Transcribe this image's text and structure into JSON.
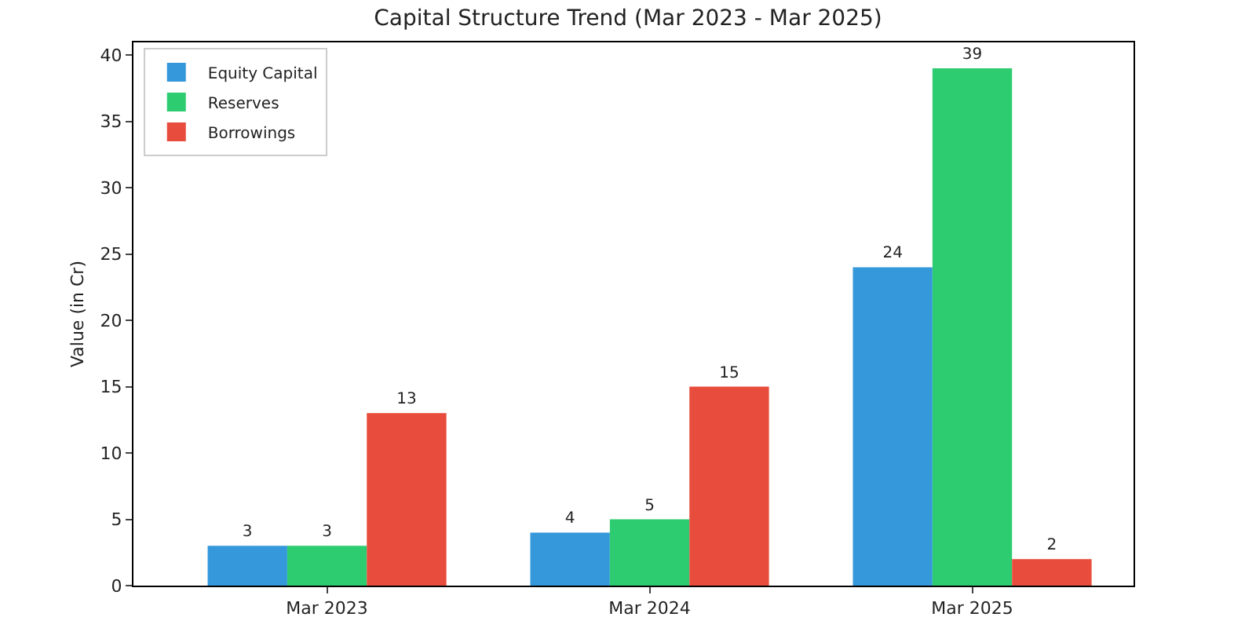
{
  "chart_data": {
    "type": "bar",
    "title": "Capital Structure Trend (Mar 2023 - Mar 2025)",
    "ylabel": "Value (in Cr)",
    "categories": [
      "Mar 2023",
      "Mar 2024",
      "Mar 2025"
    ],
    "series": [
      {
        "name": "Equity Capital",
        "color": "#3498db",
        "values": [
          3,
          4,
          24
        ]
      },
      {
        "name": "Reserves",
        "color": "#2ecc71",
        "values": [
          3,
          5,
          39
        ]
      },
      {
        "name": "Borrowings",
        "color": "#e74c3c",
        "values": [
          13,
          15,
          2
        ]
      }
    ],
    "ylim": [
      0,
      40.95
    ],
    "yticks": [
      0,
      5,
      10,
      15,
      20,
      25,
      30,
      35,
      40
    ],
    "grid": false,
    "legend": "top left",
    "data_labels": true
  }
}
